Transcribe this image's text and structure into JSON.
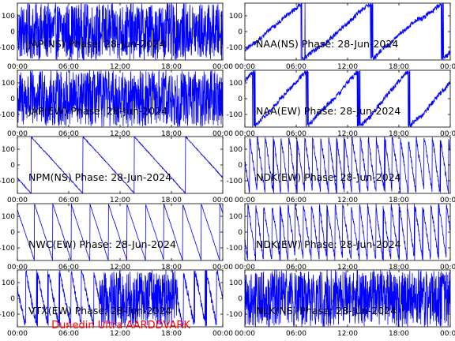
{
  "footer": "Dunedin Ultra AARDDVARK",
  "colors": {
    "trace": "#0000ff",
    "axes": "#000000",
    "footer": "#ff0000"
  },
  "chart_data": [
    {
      "type": "line",
      "title": "JAP(NS) Phase: 28-Jun-2024",
      "x_ticks": [
        "00:00",
        "06:00",
        "12:00",
        "18:00",
        "00:00"
      ],
      "y_ticks": [
        "100",
        "0",
        "-100"
      ],
      "ylim": [
        -180,
        180
      ],
      "xlim": [
        "00:00",
        "24:00"
      ],
      "style": "dense",
      "phase_wraps_per_day": 0
    },
    {
      "type": "line",
      "title": "NAA(NS) Phase: 28-Jun-2024",
      "x_ticks": [
        "00:00",
        "06:00",
        "12:00",
        "18:00",
        "00:00"
      ],
      "y_ticks": [
        "100",
        "0",
        "-100"
      ],
      "ylim": [
        -180,
        180
      ],
      "xlim": [
        "00:00",
        "24:00"
      ],
      "style": "drift",
      "phase_wraps_per_day": 3
    },
    {
      "type": "line",
      "title": "JAP(EW) Phase: 28-Jun-2024",
      "x_ticks": [
        "00:00",
        "06:00",
        "12:00",
        "18:00",
        "00:00"
      ],
      "y_ticks": [
        "100",
        "0",
        "-100"
      ],
      "ylim": [
        -180,
        180
      ],
      "xlim": [
        "00:00",
        "24:00"
      ],
      "style": "dense",
      "phase_wraps_per_day": 0
    },
    {
      "type": "line",
      "title": "NAA(EW) Phase: 28-Jun-2024",
      "x_ticks": [
        "00:00",
        "06:00",
        "12:00",
        "18:00",
        "00:00"
      ],
      "y_ticks": [
        "100",
        "0",
        "-100"
      ],
      "ylim": [
        -180,
        180
      ],
      "xlim": [
        "00:00",
        "24:00"
      ],
      "style": "drift",
      "phase_wraps_per_day": 4
    },
    {
      "type": "line",
      "title": "NPM(NS) Phase: 28-Jun-2024",
      "x_ticks": [
        "00:00",
        "06:00",
        "12:00",
        "18:00",
        "00:00"
      ],
      "y_ticks": [
        "100",
        "0",
        "-100"
      ],
      "ylim": [
        -180,
        180
      ],
      "xlim": [
        "00:00",
        "24:00"
      ],
      "style": "sawtooth",
      "phase_wraps_per_day": 4
    },
    {
      "type": "line",
      "title": "NDK(EW) Phase: 28-Jun-2024",
      "x_ticks": [
        "00:00",
        "06:00",
        "12:00",
        "18:00",
        "00:00"
      ],
      "y_ticks": [
        "100",
        "0",
        "-100"
      ],
      "ylim": [
        -180,
        180
      ],
      "xlim": [
        "00:00",
        "24:00"
      ],
      "style": "noisy-sawtooth",
      "phase_wraps_per_day": 26
    },
    {
      "type": "line",
      "title": "NWC(EW) Phase: 28-Jun-2024",
      "x_ticks": [
        "00:00",
        "06:00",
        "12:00",
        "18:00",
        "00:00"
      ],
      "y_ticks": [
        "100",
        "0",
        "-100"
      ],
      "ylim": [
        -180,
        180
      ],
      "xlim": [
        "00:00",
        "24:00"
      ],
      "style": "sawtooth",
      "phase_wraps_per_day": 11
    },
    {
      "type": "line",
      "title": "NDK(EW) Phase: 28-Jun-2024",
      "x_ticks": [
        "00:00",
        "06:00",
        "12:00",
        "18:00",
        "00:00"
      ],
      "y_ticks": [
        "100",
        "0",
        "-100"
      ],
      "ylim": [
        -180,
        180
      ],
      "xlim": [
        "00:00",
        "24:00"
      ],
      "style": "noisy-sawtooth",
      "phase_wraps_per_day": 26
    },
    {
      "type": "line",
      "title": "VTX(EW) Phase: 28-Jun-2024",
      "x_ticks": [
        "00:00",
        "06:00",
        "12:00",
        "18:00",
        "00:00"
      ],
      "y_ticks": [
        "100",
        "0",
        "-100"
      ],
      "ylim": [
        -180,
        180
      ],
      "xlim": [
        "00:00",
        "24:00"
      ],
      "style": "mixed",
      "phase_wraps_per_day": 18
    },
    {
      "type": "line",
      "title": "NLK(NS) Phase: 28-Jun-2024",
      "x_ticks": [
        "00:00",
        "06:00",
        "12:00",
        "18:00",
        "00:00"
      ],
      "y_ticks": [
        "100",
        "0",
        "-100"
      ],
      "ylim": [
        -180,
        180
      ],
      "xlim": [
        "00:00",
        "24:00"
      ],
      "style": "dense",
      "phase_wraps_per_day": 0
    }
  ]
}
